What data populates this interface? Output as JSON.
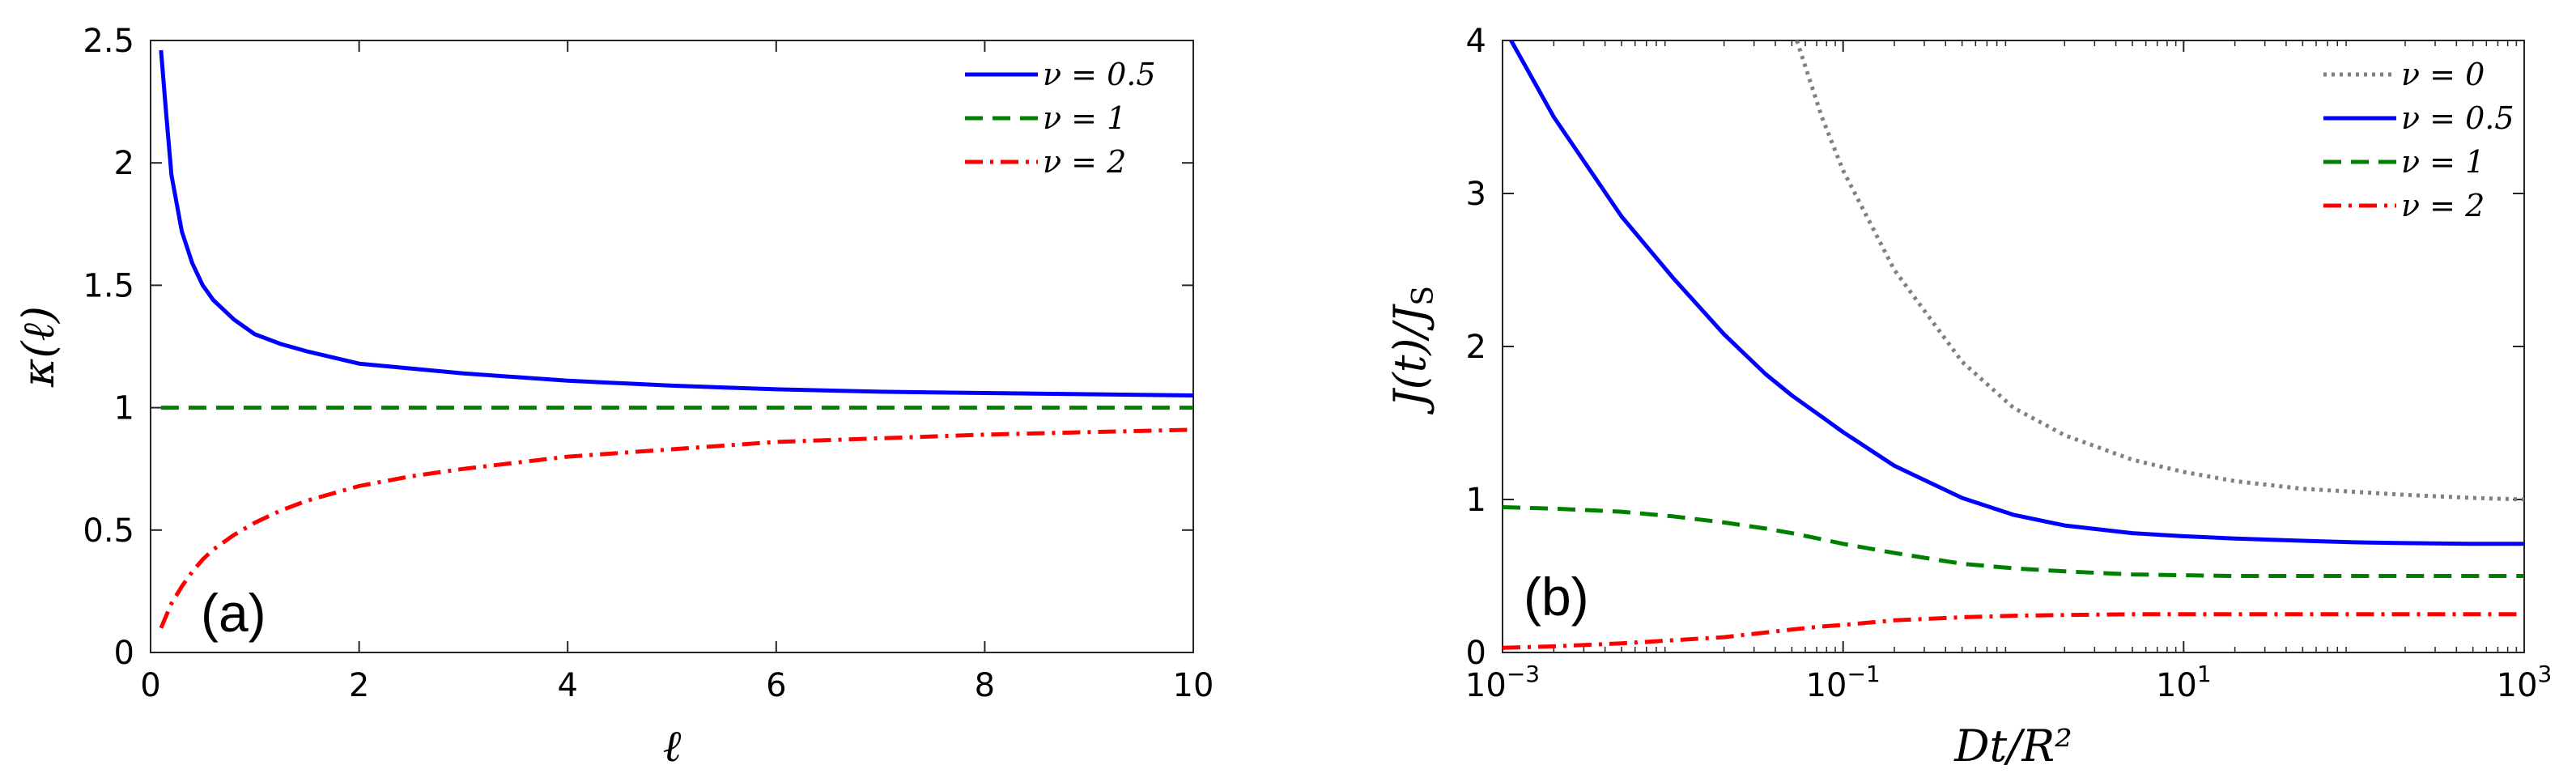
{
  "chart_data": [
    {
      "type": "line",
      "panel_label": "(a)",
      "xlabel": "ℓ",
      "ylabel": "κ(ℓ)",
      "xlim": [
        0,
        10
      ],
      "ylim": [
        0,
        2.5
      ],
      "xscale": "linear",
      "grid": false,
      "legend_position": "top-right",
      "x_ticks": [
        0,
        2,
        4,
        6,
        8,
        10
      ],
      "x_tick_labels": [
        "0",
        "2",
        "4",
        "6",
        "8",
        "10"
      ],
      "y_ticks": [
        0,
        0.5,
        1,
        1.5,
        2,
        2.5
      ],
      "y_tick_labels": [
        "0",
        "0.5",
        "1",
        "1.5",
        "2",
        "2.5"
      ],
      "x": [
        0.1,
        0.15,
        0.2,
        0.3,
        0.4,
        0.5,
        0.6,
        0.8,
        1,
        1.25,
        1.5,
        2,
        2.5,
        3,
        4,
        5,
        6,
        7,
        8,
        9,
        10
      ],
      "series": [
        {
          "name": "ν = 0.5",
          "legend": "ν = 0.5",
          "color": "#0000ff",
          "style": "solid",
          "values": [
            2.46,
            2.2,
            1.95,
            1.72,
            1.59,
            1.5,
            1.44,
            1.36,
            1.3,
            1.26,
            1.23,
            1.18,
            1.16,
            1.14,
            1.11,
            1.09,
            1.075,
            1.065,
            1.06,
            1.055,
            1.05
          ]
        },
        {
          "name": "ν = 1",
          "legend": "ν = 1",
          "color": "#008000",
          "style": "dashed",
          "values": [
            1,
            1,
            1,
            1,
            1,
            1,
            1,
            1,
            1,
            1,
            1,
            1,
            1,
            1,
            1,
            1,
            1,
            1,
            1,
            1,
            1
          ]
        },
        {
          "name": "ν = 2",
          "legend": "ν = 2",
          "color": "#ff0000",
          "style": "dashdot",
          "values": [
            0.1,
            0.15,
            0.2,
            0.27,
            0.33,
            0.38,
            0.42,
            0.48,
            0.53,
            0.58,
            0.62,
            0.68,
            0.72,
            0.75,
            0.8,
            0.83,
            0.86,
            0.875,
            0.89,
            0.9,
            0.91
          ]
        }
      ]
    },
    {
      "type": "line",
      "panel_label": "(b)",
      "xlabel": "Dt/R²",
      "ylabel": "J(t)/J",
      "ylabel_sub": "S",
      "xlim": [
        0.001,
        1000
      ],
      "ylim": [
        0,
        4
      ],
      "xscale": "log",
      "grid": false,
      "legend_position": "top-right",
      "x_ticks": [
        0.001,
        0.1,
        10,
        1000
      ],
      "x_tick_labels": [
        {
          "base": "10",
          "exp": "−3"
        },
        {
          "base": "10",
          "exp": "−1"
        },
        {
          "base": "10",
          "exp": "1"
        },
        {
          "base": "10",
          "exp": "3"
        }
      ],
      "y_ticks": [
        0,
        1,
        2,
        3,
        4
      ],
      "y_tick_labels": [
        "0",
        "1",
        "2",
        "3",
        "4"
      ],
      "x": [
        0.001,
        0.002,
        0.005,
        0.01,
        0.02,
        0.035,
        0.05,
        0.075,
        0.1,
        0.2,
        0.5,
        1,
        2,
        5,
        10,
        20,
        50,
        100,
        200,
        500,
        1000
      ],
      "series": [
        {
          "name": "ν = 0",
          "legend": "ν = 0",
          "color": "#808080",
          "style": "dotted",
          "values": [
            null,
            null,
            null,
            null,
            null,
            null,
            4.1,
            3.5,
            3.15,
            2.5,
            1.9,
            1.6,
            1.42,
            1.26,
            1.18,
            1.12,
            1.07,
            1.05,
            1.03,
            1.01,
            1.0
          ]
        },
        {
          "name": "ν = 0.5",
          "legend": "ν = 0.5",
          "color": "#0000ff",
          "style": "solid",
          "values": [
            4.1,
            3.5,
            2.85,
            2.45,
            2.08,
            1.82,
            1.68,
            1.54,
            1.44,
            1.22,
            1.01,
            0.9,
            0.83,
            0.78,
            0.76,
            0.745,
            0.73,
            0.72,
            0.715,
            0.71,
            0.71
          ]
        },
        {
          "name": "ν = 1",
          "legend": "ν = 1",
          "color": "#008000",
          "style": "dashed",
          "values": [
            0.95,
            0.94,
            0.92,
            0.89,
            0.85,
            0.81,
            0.78,
            0.74,
            0.71,
            0.65,
            0.58,
            0.55,
            0.53,
            0.51,
            0.505,
            0.5,
            0.5,
            0.5,
            0.5,
            0.5,
            0.5
          ]
        },
        {
          "name": "ν = 2",
          "legend": "ν = 2",
          "color": "#ff0000",
          "style": "dashdot",
          "values": [
            0.03,
            0.04,
            0.06,
            0.08,
            0.1,
            0.13,
            0.15,
            0.17,
            0.18,
            0.21,
            0.23,
            0.24,
            0.245,
            0.25,
            0.25,
            0.25,
            0.25,
            0.25,
            0.25,
            0.25,
            0.25
          ]
        }
      ]
    }
  ]
}
